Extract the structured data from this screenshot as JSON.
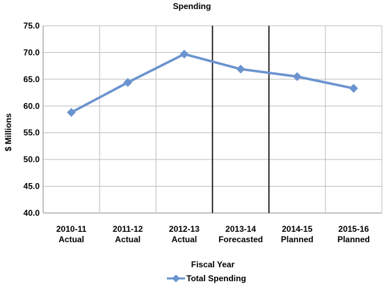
{
  "chart_data": {
    "type": "line",
    "title": "Spending",
    "xlabel": "Fiscal Year",
    "ylabel": "$ Millions",
    "ylim": [
      40,
      75
    ],
    "yticks": [
      "40.0",
      "45.0",
      "50.0",
      "55.0",
      "60.0",
      "65.0",
      "70.0",
      "75.0"
    ],
    "categories": [
      [
        "2010-11",
        "Actual"
      ],
      [
        "2011-12",
        "Actual"
      ],
      [
        "2012-13",
        "Actual"
      ],
      [
        "2013-14",
        "Forecasted"
      ],
      [
        "2014-15",
        "Planned"
      ],
      [
        "2015-16",
        "Planned"
      ]
    ],
    "series": [
      {
        "name": "Total Spending",
        "values": [
          58.8,
          64.4,
          69.7,
          66.9,
          65.5,
          63.3
        ],
        "color": "#6b93cf"
      }
    ],
    "grid": true,
    "emphasized_dividers_after_category": [
      3,
      4
    ],
    "legend": "bottom"
  }
}
